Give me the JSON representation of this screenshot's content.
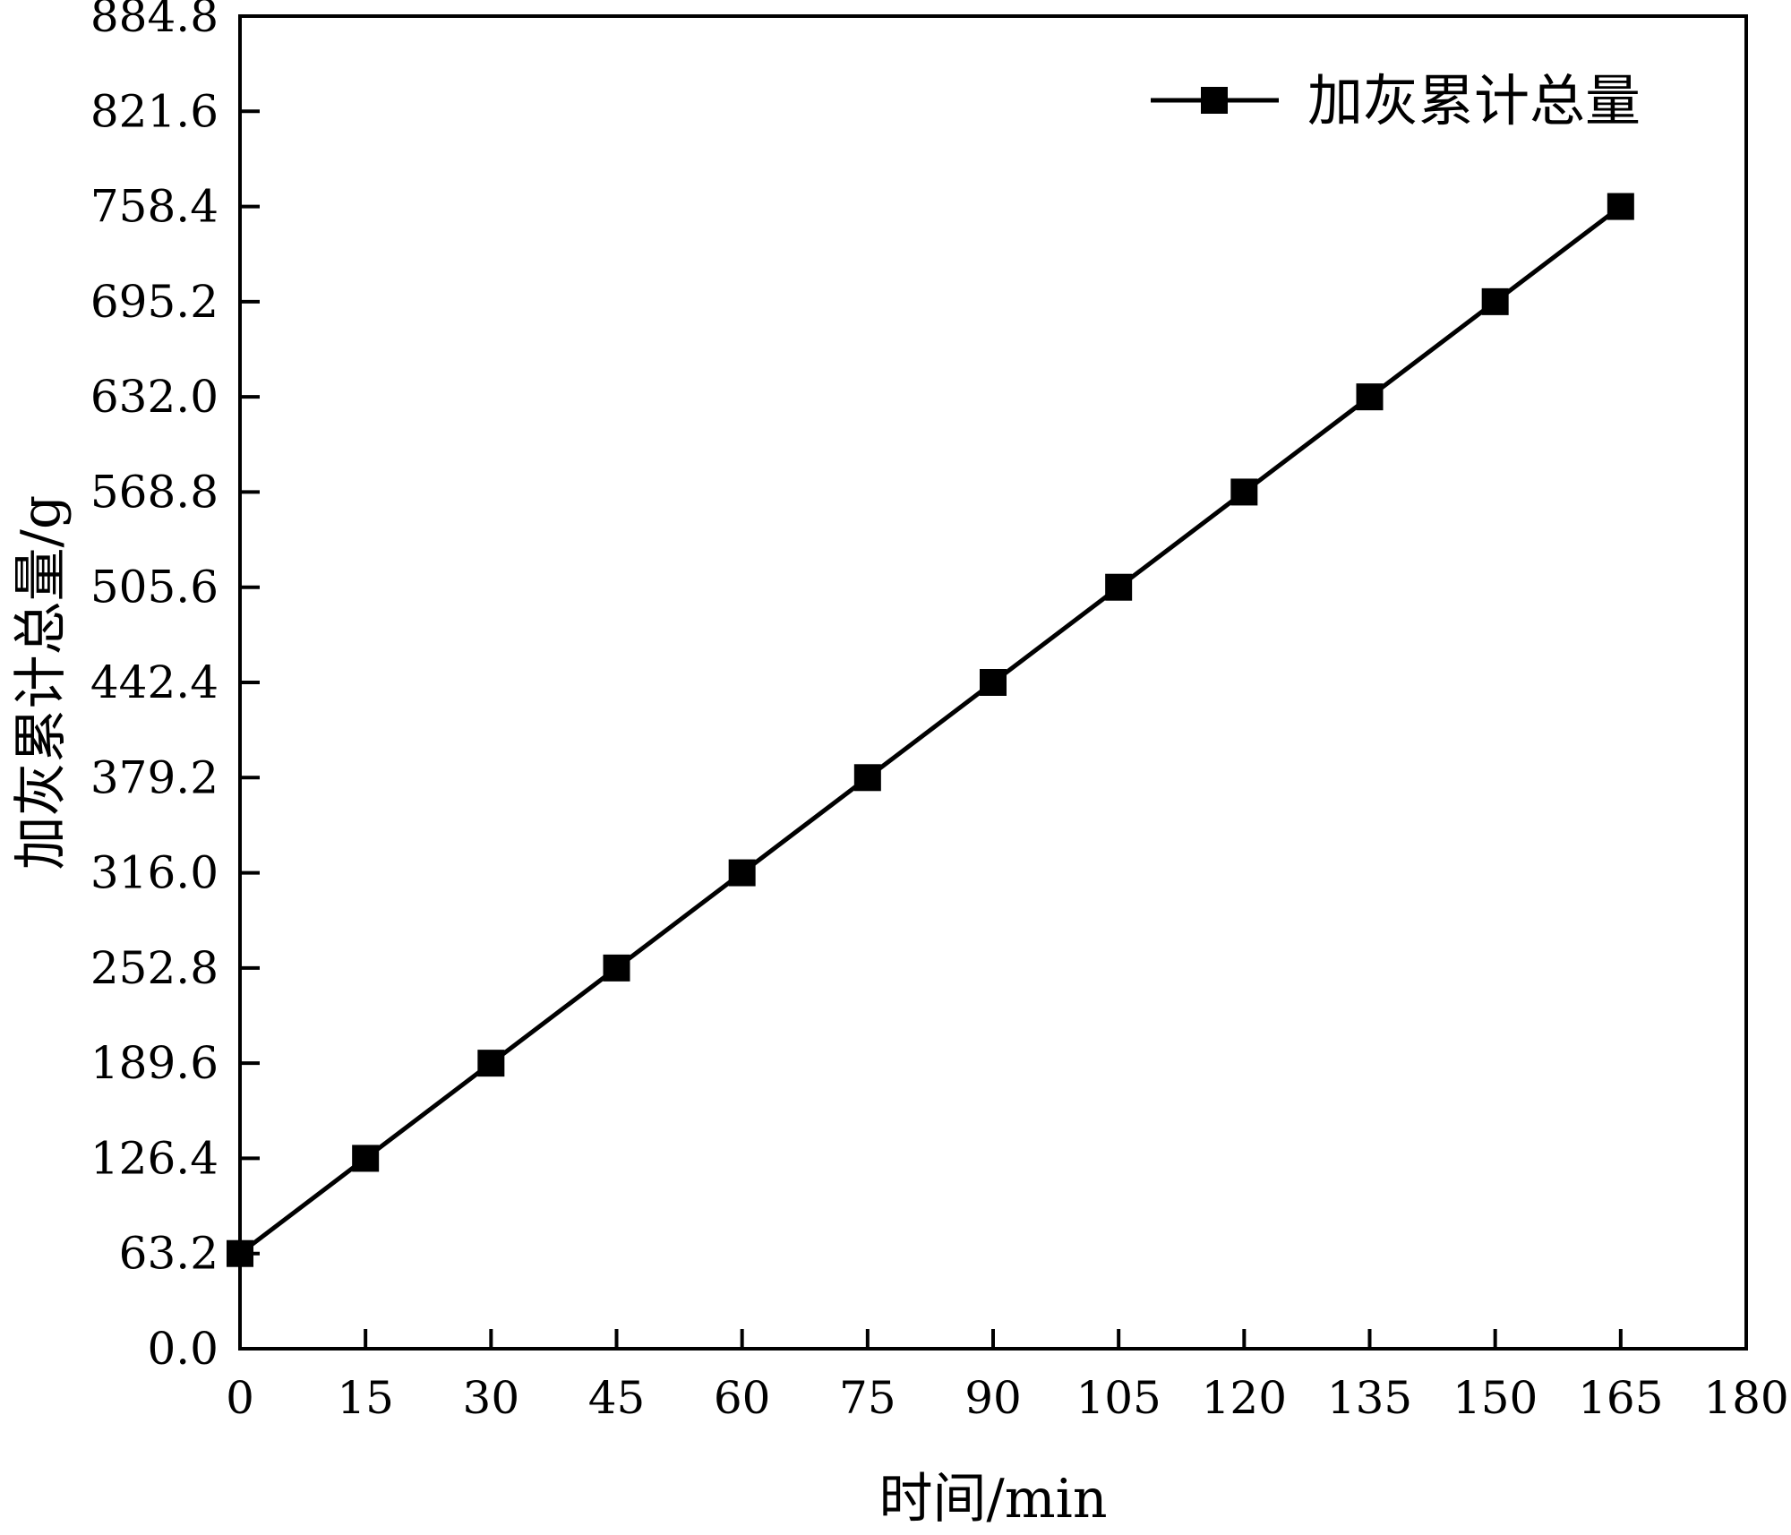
{
  "chart_data": {
    "type": "line",
    "xlabel": "时间/min",
    "ylabel": "加灰累计总量/g",
    "xlim": [
      0,
      180
    ],
    "ylim": [
      0,
      884.8
    ],
    "x_ticks": [
      0,
      15,
      30,
      45,
      60,
      75,
      90,
      105,
      120,
      135,
      150,
      165,
      180
    ],
    "y_ticks": [
      0.0,
      63.2,
      126.4,
      189.6,
      252.8,
      316.0,
      379.2,
      442.4,
      505.6,
      568.8,
      632.0,
      695.2,
      758.4,
      821.6,
      884.8
    ],
    "x_tick_labels": [
      "0",
      "15",
      "30",
      "45",
      "60",
      "75",
      "90",
      "105",
      "120",
      "135",
      "150",
      "165",
      "180"
    ],
    "y_tick_labels": [
      "0.0",
      "63.2",
      "126.4",
      "189.6",
      "252.8",
      "316.0",
      "379.2",
      "442.4",
      "505.6",
      "568.8",
      "632.0",
      "695.2",
      "758.4",
      "821.6",
      "884.8"
    ],
    "grid": false,
    "legend_position": "top-right",
    "series": [
      {
        "name": "加灰累计总量",
        "marker": "square",
        "color": "#000000",
        "x": [
          0,
          15,
          30,
          45,
          60,
          75,
          90,
          105,
          120,
          135,
          150,
          165
        ],
        "y": [
          63.2,
          126.4,
          189.6,
          252.8,
          316.0,
          379.2,
          442.4,
          505.6,
          568.8,
          632.0,
          695.2,
          758.4
        ]
      }
    ]
  }
}
